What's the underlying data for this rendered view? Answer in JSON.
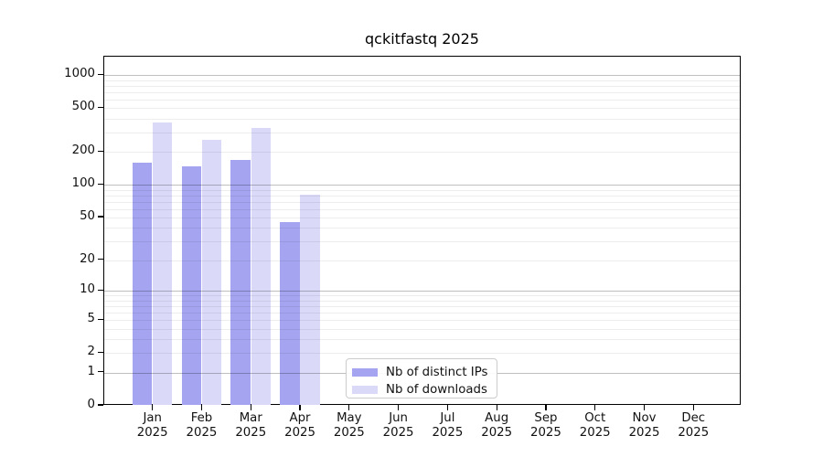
{
  "title": "qckitfastq 2025",
  "chart_data": {
    "type": "bar",
    "title": "qckitfastq 2025",
    "categories": [
      "Jan",
      "Feb",
      "Mar",
      "Apr",
      "May",
      "Jun",
      "Jul",
      "Aug",
      "Sep",
      "Oct",
      "Nov",
      "Dec"
    ],
    "category_sublabel": "2025",
    "series": [
      {
        "name": "Nb of distinct IPs",
        "color": "#a4a4f0",
        "values": [
          160,
          147,
          168,
          45,
          0,
          0,
          0,
          0,
          0,
          0,
          0,
          0
        ]
      },
      {
        "name": "Nb of downloads",
        "color": "#dadaf8",
        "values": [
          370,
          258,
          330,
          82,
          0,
          0,
          0,
          0,
          0,
          0,
          0,
          0
        ]
      }
    ],
    "xlabel": "",
    "ylabel": "",
    "yticks": [
      0,
      1,
      2,
      5,
      10,
      20,
      50,
      100,
      200,
      500,
      1000
    ],
    "yscale": "log10(value+1)",
    "ylim": [
      0,
      1470
    ],
    "grid": "horizontal major+minor, drawn over bars",
    "legend_position": "lower center"
  }
}
